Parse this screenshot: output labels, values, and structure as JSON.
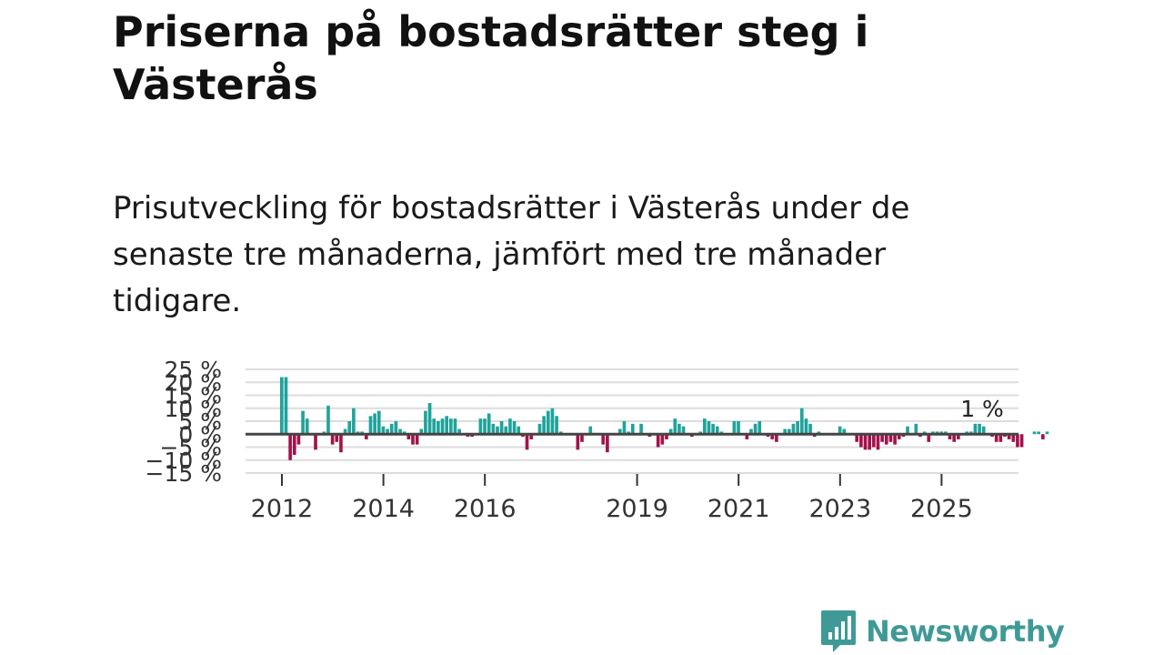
{
  "title": "Priserna på bostadsrätter steg i Västerås",
  "subtitle": "Prisutveckling för bostadsrätter i Västerås under de senaste tre månaderna, jämfört med tre månader tidigare.",
  "brand": "Newsworthy",
  "colors": {
    "positive": "#1fa39b",
    "negative": "#a3124a",
    "grid": "#dcdcdc",
    "zero": "#444444"
  },
  "chart_data": {
    "type": "bar",
    "title": "",
    "xlabel": "",
    "ylabel": "",
    "ylim": [
      -15,
      25
    ],
    "yticks": [
      25,
      20,
      15,
      10,
      5,
      0,
      -5,
      -10,
      -15
    ],
    "ytick_labels": [
      "25 %",
      "20 %",
      "15 %",
      "10 %",
      "5 %",
      "0 %",
      "−5 %",
      "−10 %",
      "−15 %"
    ],
    "xtick_labels": [
      "2012",
      "2014",
      "2016",
      "2019",
      "2021",
      "2023",
      "2025"
    ],
    "xtick_years": [
      2012,
      2014,
      2016,
      2019,
      2021,
      2023,
      2025
    ],
    "start_year": 2012,
    "annotation": "1 %",
    "values": [
      22,
      22,
      -10,
      -8,
      -4,
      9,
      6,
      0,
      -6,
      0,
      1,
      11,
      -4,
      -3,
      -7,
      2,
      5,
      10,
      1,
      1,
      -2,
      7,
      8,
      9,
      3,
      2,
      4,
      5,
      2,
      1,
      -2,
      -4,
      -4,
      2,
      9,
      12,
      6,
      5,
      6,
      7,
      6,
      6,
      2,
      0,
      -1,
      -1,
      0,
      6,
      6,
      8,
      4,
      3,
      5,
      3,
      6,
      5,
      3,
      -1,
      -6,
      -2,
      0,
      4,
      7,
      9,
      10,
      7,
      1,
      0,
      0,
      0,
      -6,
      -3,
      0,
      3,
      0,
      0,
      -4,
      -7,
      0,
      0,
      2,
      5,
      1,
      4,
      0,
      4,
      0,
      -1,
      0,
      -5,
      -4,
      -2,
      2,
      6,
      4,
      3,
      0,
      -1,
      0,
      1,
      6,
      5,
      4,
      3,
      1,
      0,
      0,
      5,
      5,
      0,
      -2,
      2,
      4,
      5,
      0,
      -1,
      -2,
      -3,
      0,
      2,
      2,
      4,
      5,
      10,
      6,
      4,
      -1,
      1,
      0,
      0,
      0,
      0,
      3,
      2,
      0,
      0,
      -3,
      -5,
      -6,
      -6,
      -5,
      -6,
      -3,
      -4,
      -3,
      -4,
      -2,
      -1,
      3,
      0,
      4,
      -1,
      1,
      -3,
      1,
      1,
      1,
      1,
      -2,
      -3,
      -2,
      0,
      1,
      1,
      4,
      4,
      3,
      0,
      -1,
      -3,
      -3,
      -1,
      -2,
      -3,
      -5,
      -5,
      0,
      0,
      1,
      1,
      -2,
      1
    ]
  }
}
